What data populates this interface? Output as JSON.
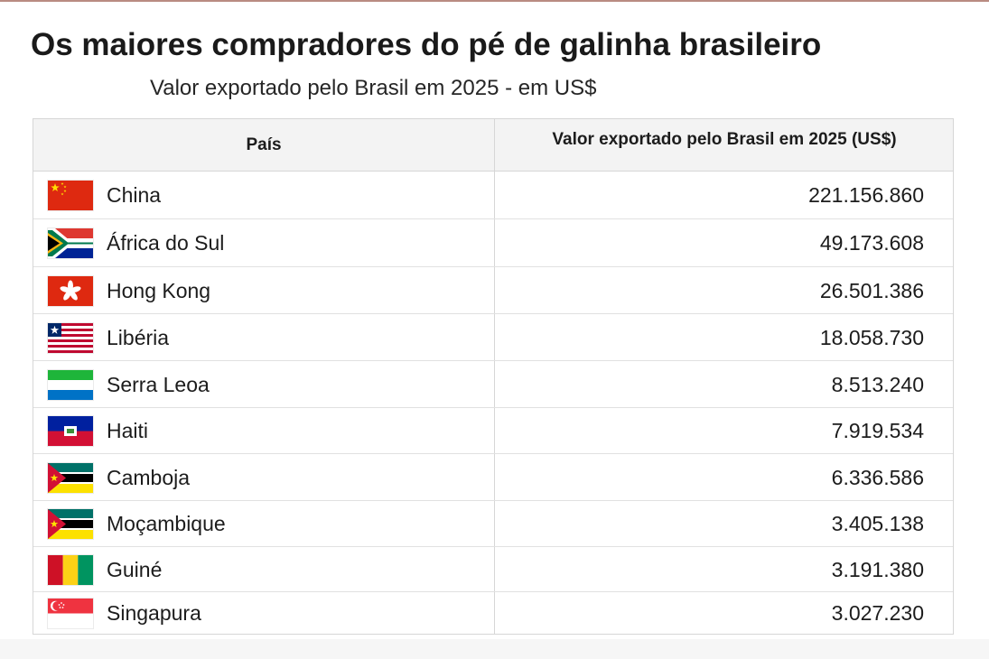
{
  "title": "Os maiores compradores do pé de galinha brasileiro",
  "subtitle": "Valor exportado pelo Brasil em 2025 - em US$",
  "colors": {
    "header_bg": "#f3f3f3",
    "border": "#d6d6d6",
    "text": "#1c1c1c"
  },
  "chart_data": {
    "type": "table",
    "title": "Os maiores compradores do pé de galinha brasileiro",
    "subtitle": "Valor exportado pelo Brasil em 2025 - em US$",
    "columns": [
      "País",
      "Valor exportado pelo Brasil em 2025 (US$)"
    ],
    "rows": [
      {
        "country": "China",
        "value": "221.156.860",
        "flag": "china-flag-icon"
      },
      {
        "country": "África do Sul",
        "value": "49.173.608",
        "flag": "south-africa-flag-icon"
      },
      {
        "country": "Hong Kong",
        "value": "26.501.386",
        "flag": "hong-kong-flag-icon"
      },
      {
        "country": "Libéria",
        "value": "18.058.730",
        "flag": "liberia-flag-icon"
      },
      {
        "country": "Serra Leoa",
        "value": "8.513.240",
        "flag": "sierra-leone-flag-icon"
      },
      {
        "country": "Haiti",
        "value": "7.919.534",
        "flag": "haiti-flag-icon"
      },
      {
        "country": "Camboja",
        "value": "6.336.586",
        "flag": "mozambique-flag-icon"
      },
      {
        "country": "Moçambique",
        "value": "3.405.138",
        "flag": "mozambique-flag-icon"
      },
      {
        "country": "Guiné",
        "value": "3.191.380",
        "flag": "guinea-flag-icon"
      },
      {
        "country": "Singapura",
        "value": "3.027.230",
        "flag": "singapore-flag-icon"
      }
    ]
  }
}
